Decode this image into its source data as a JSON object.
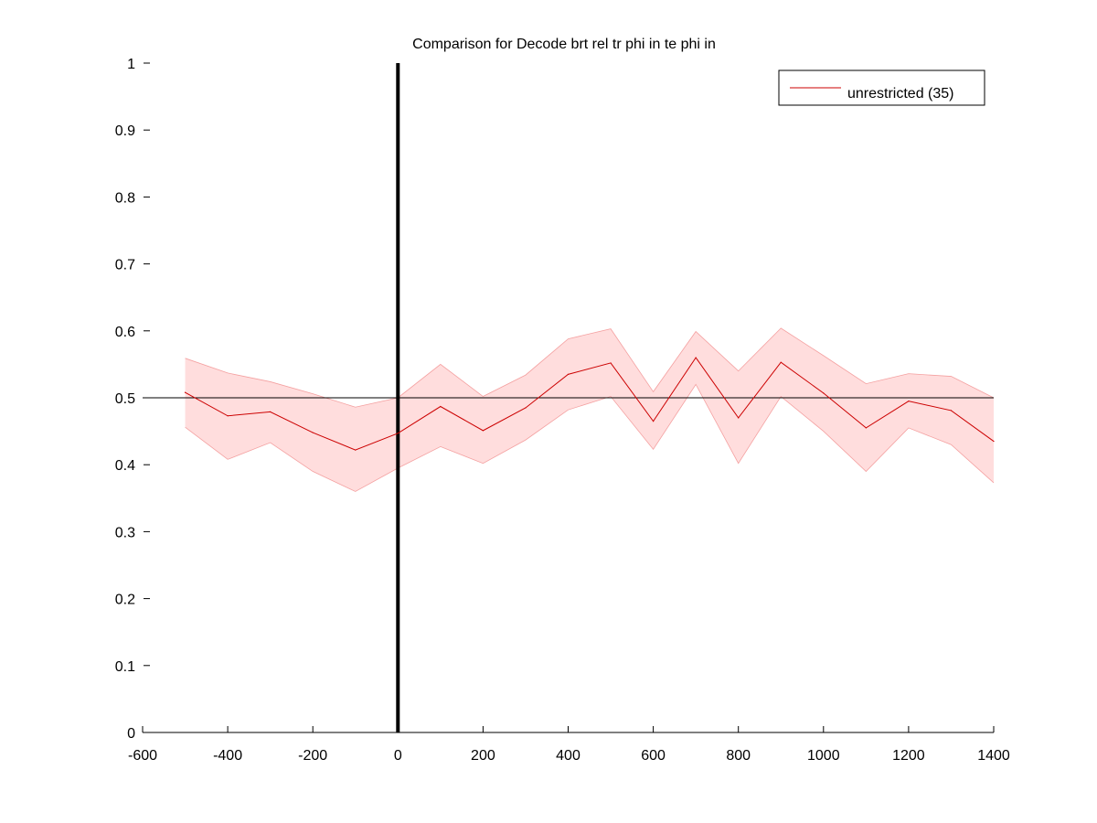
{
  "chart_data": {
    "type": "line",
    "title": "Comparison for Decode brt rel tr phi in te phi in",
    "xlabel": "",
    "ylabel": "",
    "xlim": [
      -600,
      1400
    ],
    "ylim": [
      0,
      1
    ],
    "x_ticks": [
      -600,
      -400,
      -200,
      0,
      200,
      400,
      600,
      800,
      1000,
      1200,
      1400
    ],
    "y_ticks": [
      0,
      0.1,
      0.2,
      0.3,
      0.4,
      0.5,
      0.6,
      0.7,
      0.8,
      0.9,
      1
    ],
    "x_tick_labels": [
      "-600",
      "-400",
      "-200",
      "0",
      "200",
      "400",
      "600",
      "800",
      "1000",
      "1200",
      "1400"
    ],
    "y_tick_labels": [
      "0",
      "0.1",
      "0.2",
      "0.3",
      "0.4",
      "0.5",
      "0.6",
      "0.7",
      "0.8",
      "0.9",
      "1"
    ],
    "grid": false,
    "legend_position": "top-right",
    "series": [
      {
        "name": "unrestricted (35)",
        "color": "#cc0000",
        "band_color": "#ffdddd",
        "x": [
          -500,
          -400,
          -300,
          -200,
          -100,
          0,
          100,
          200,
          300,
          400,
          500,
          600,
          700,
          800,
          900,
          1000,
          1100,
          1200,
          1300,
          1400
        ],
        "values": [
          0.508,
          0.473,
          0.479,
          0.448,
          0.422,
          0.447,
          0.487,
          0.451,
          0.485,
          0.535,
          0.552,
          0.465,
          0.56,
          0.47,
          0.553,
          0.507,
          0.455,
          0.495,
          0.481,
          0.435
        ],
        "upper": [
          0.559,
          0.537,
          0.524,
          0.506,
          0.486,
          0.5,
          0.55,
          0.502,
          0.534,
          0.588,
          0.603,
          0.509,
          0.599,
          0.54,
          0.604,
          0.563,
          0.521,
          0.536,
          0.532,
          0.5
        ],
        "lower": [
          0.456,
          0.408,
          0.433,
          0.39,
          0.36,
          0.395,
          0.427,
          0.402,
          0.437,
          0.482,
          0.502,
          0.423,
          0.52,
          0.402,
          0.502,
          0.45,
          0.39,
          0.455,
          0.43,
          0.373
        ]
      }
    ],
    "reference_lines": {
      "horizontal_y": 0.5,
      "vertical_x": 0
    }
  }
}
